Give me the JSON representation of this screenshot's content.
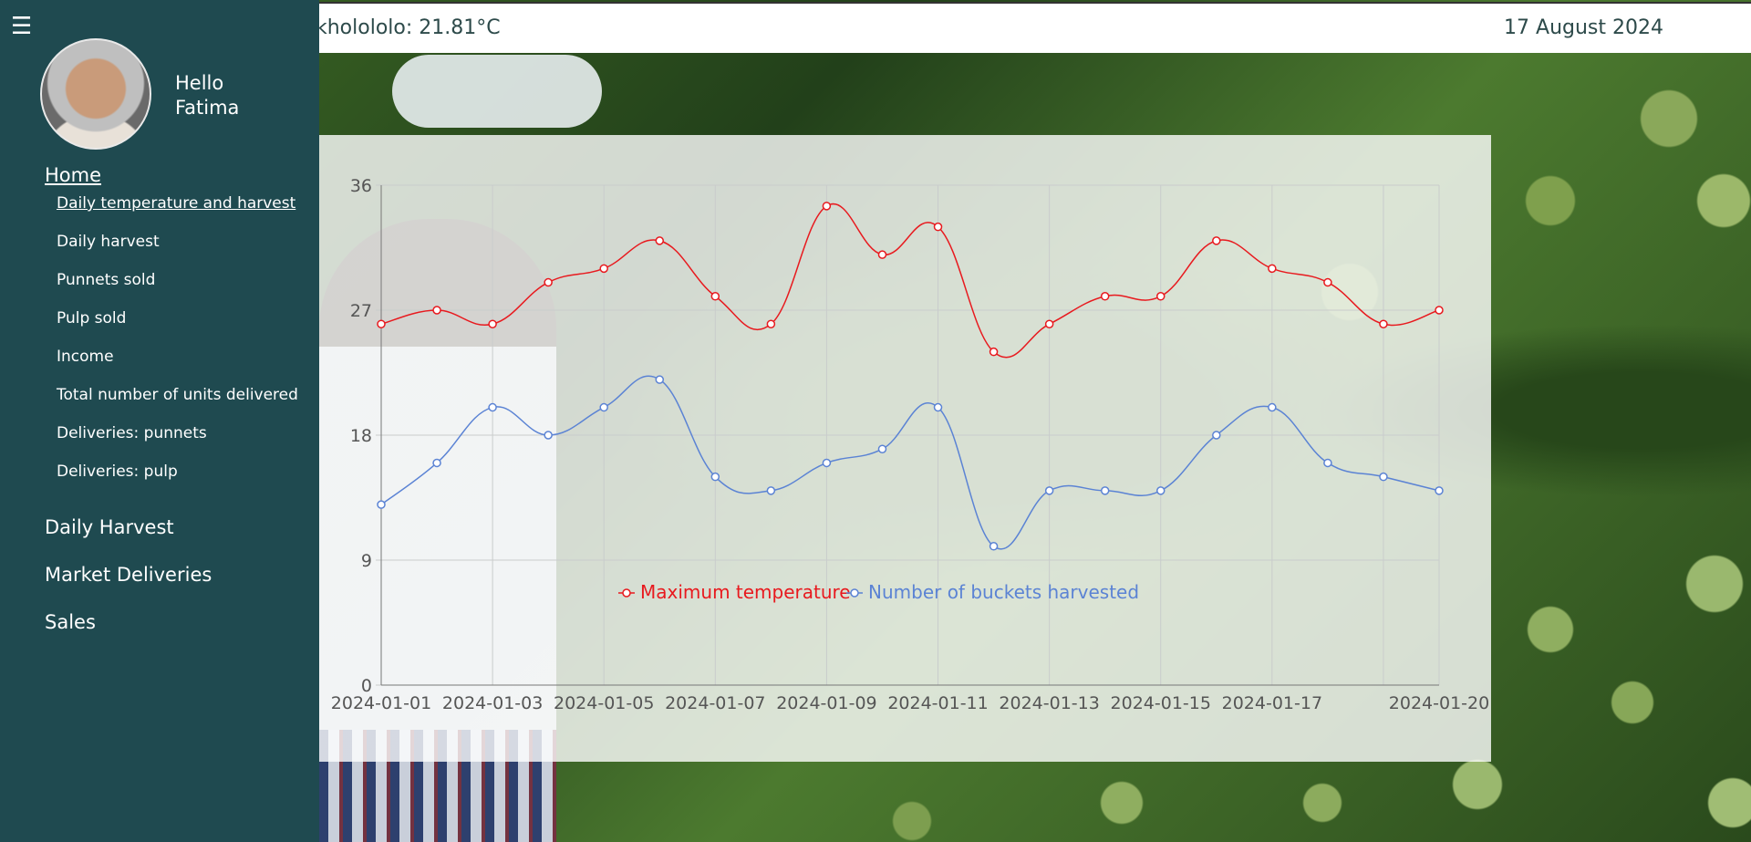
{
  "header": {
    "weather": "kholololo: 21.81°C",
    "date": "17 August 2024"
  },
  "sidebar": {
    "menu_icon": "hamburger-icon",
    "greeting_line1": "Hello",
    "greeting_line2": "Fatima",
    "home_label": "Home",
    "home_items": [
      {
        "label": "Daily temperature and harvest"
      },
      {
        "label": "Daily harvest"
      },
      {
        "label": "Punnets sold"
      },
      {
        "label": "Pulp sold"
      },
      {
        "label": "Income"
      },
      {
        "label": "Total number of units delivered"
      },
      {
        "label": "Deliveries: punnets"
      },
      {
        "label": "Deliveries: pulp"
      }
    ],
    "sections": [
      {
        "label": "Daily Harvest"
      },
      {
        "label": "Market Deliveries"
      },
      {
        "label": "Sales"
      }
    ]
  },
  "chart_data": {
    "type": "line",
    "x": [
      "2024-01-01",
      "2024-01-02",
      "2024-01-03",
      "2024-01-04",
      "2024-01-05",
      "2024-01-06",
      "2024-01-07",
      "2024-01-08",
      "2024-01-09",
      "2024-01-10",
      "2024-01-11",
      "2024-01-12",
      "2024-01-13",
      "2024-01-14",
      "2024-01-15",
      "2024-01-16",
      "2024-01-17",
      "2024-01-18",
      "2024-01-19",
      "2024-01-20"
    ],
    "x_tick_labels": [
      "2024-01-01",
      "2024-01-03",
      "2024-01-05",
      "2024-01-07",
      "2024-01-09",
      "2024-01-11",
      "2024-01-13",
      "2024-01-15",
      "2024-01-17",
      "2024-01-20"
    ],
    "y_ticks": [
      0,
      9,
      18,
      27,
      36
    ],
    "ylim": [
      0,
      36
    ],
    "grid": true,
    "legend_position": "bottom",
    "series": [
      {
        "name": "Maximum temperature",
        "color": "#e8191e",
        "values": [
          26,
          27,
          26,
          29,
          30,
          32,
          28,
          26,
          34.5,
          31,
          33,
          24,
          26,
          28,
          28,
          32,
          30,
          29,
          26,
          27
        ]
      },
      {
        "name": "Number of buckets harvested",
        "color": "#5b83d4",
        "values": [
          13,
          16,
          20,
          18,
          20,
          22,
          15,
          14,
          16,
          17,
          20,
          10,
          14,
          14,
          14,
          18,
          20,
          16,
          15,
          14
        ]
      }
    ]
  }
}
